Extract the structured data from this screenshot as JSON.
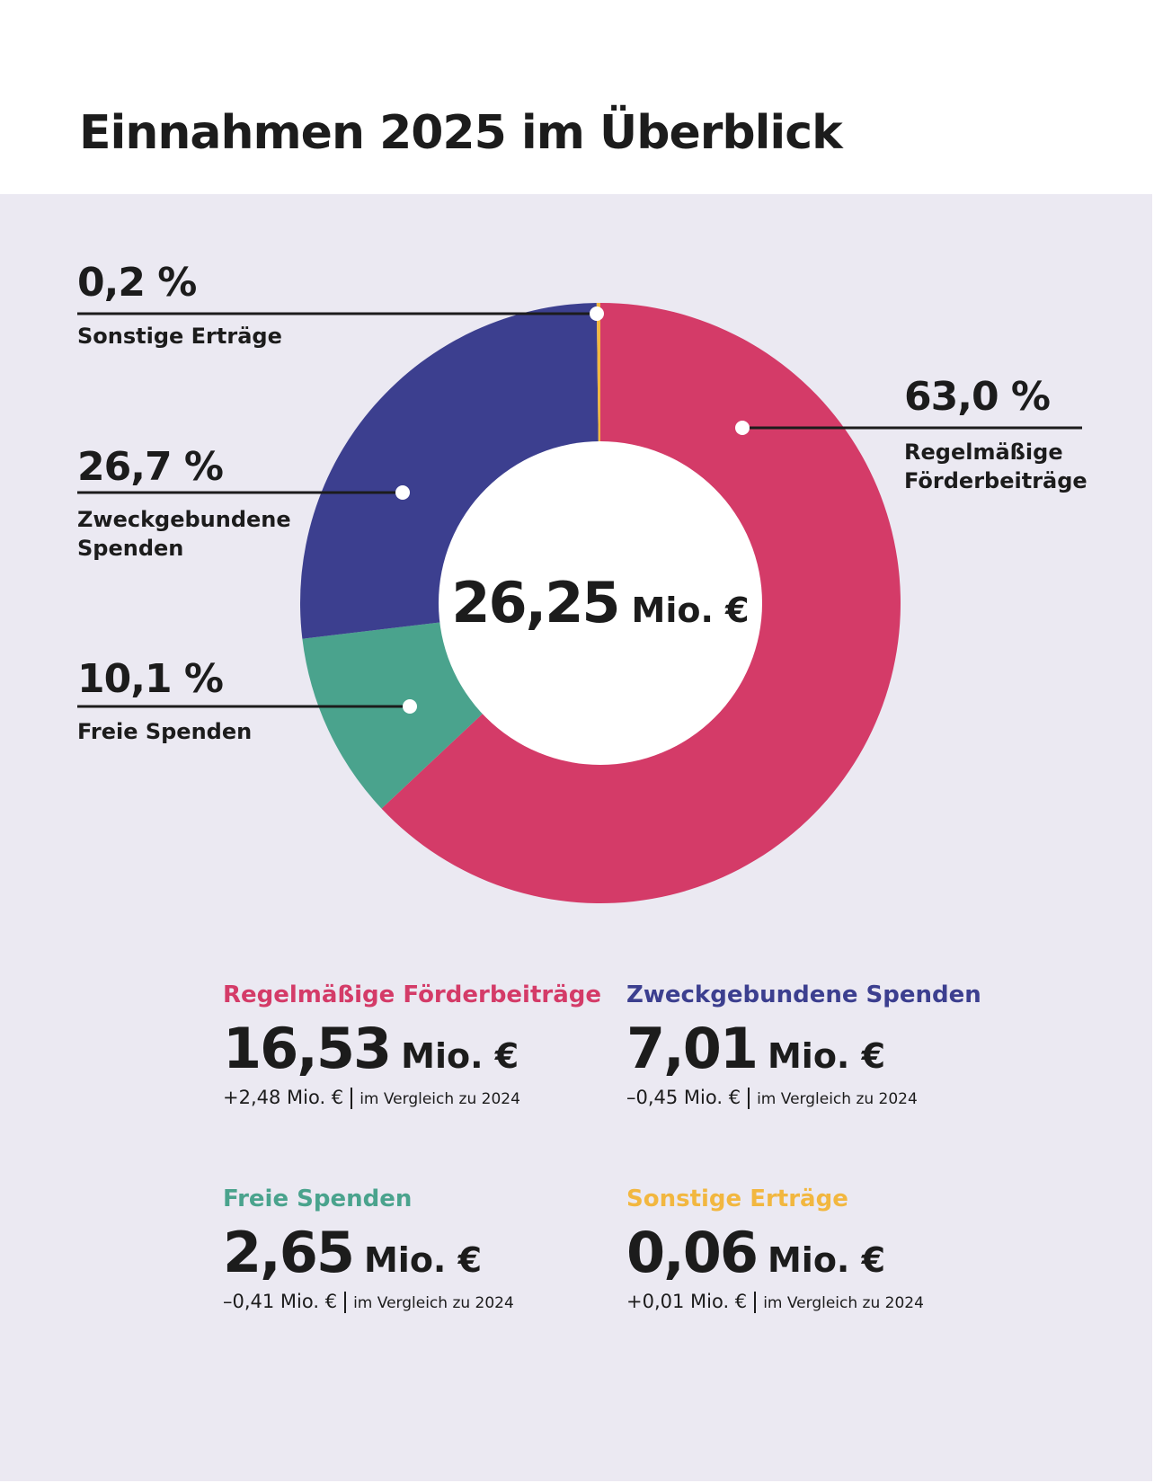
{
  "title": "Einnahmen 2025 im Überblick",
  "center": {
    "value": "26,25",
    "unit": "Mio. €"
  },
  "colors": {
    "panel": "#ebe9f2",
    "regelmaessig": "#d43b68",
    "zweck": "#3c3f8f",
    "freie": "#4aa38d",
    "sonstige": "#f2b740"
  },
  "chart_data": {
    "type": "pie",
    "donut": true,
    "title": "Einnahmen 2025 im Überblick",
    "total": "26,25 Mio. €",
    "slices": [
      {
        "label": "Regelmäßige Förderbeiträge",
        "label_lines": [
          "Regelmäßige",
          "Förderbeiträge"
        ],
        "percent": 63.0,
        "percent_text": "63,0 %",
        "color": "#d43b68"
      },
      {
        "label": "Freie Spenden",
        "label_lines": [
          "Freie Spenden"
        ],
        "percent": 10.1,
        "percent_text": "10,1 %",
        "color": "#4aa38d"
      },
      {
        "label": "Zweckgebundene Spenden",
        "label_lines": [
          "Zweckgebundene",
          "Spenden"
        ],
        "percent": 26.7,
        "percent_text": "26,7 %",
        "color": "#3c3f8f"
      },
      {
        "label": "Sonstige Erträge",
        "label_lines": [
          "Sonstige Erträge"
        ],
        "percent": 0.2,
        "percent_text": "0,2 %",
        "color": "#f2b740"
      }
    ]
  },
  "cards": [
    {
      "title": "Regelmäßige Förderbeiträge",
      "value": "16,53",
      "unit": "Mio. €",
      "delta": "+2,48 Mio. €",
      "compare": "im Vergleich zu 2024",
      "color": "#d43b68"
    },
    {
      "title": "Zweckgebundene Spenden",
      "value": "7,01",
      "unit": "Mio. €",
      "delta": "–0,45 Mio. €",
      "compare": "im Vergleich zu 2024",
      "color": "#3c3f8f"
    },
    {
      "title": "Freie Spenden",
      "value": "2,65",
      "unit": "Mio. €",
      "delta": "–0,41 Mio. €",
      "compare": "im Vergleich zu 2024",
      "color": "#4aa38d"
    },
    {
      "title": "Sonstige Erträge",
      "value": "0,06",
      "unit": "Mio. €",
      "delta": "+0,01 Mio. €",
      "compare": "im Vergleich zu 2024",
      "color": "#f2b740"
    }
  ]
}
